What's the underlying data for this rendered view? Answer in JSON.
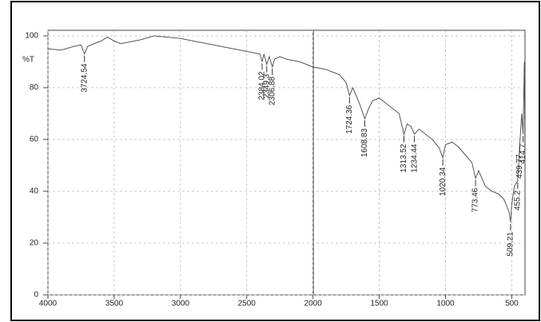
{
  "chart_data": {
    "type": "line",
    "ylabel": "%T",
    "x": [
      4000,
      3900,
      3800,
      3750,
      3724.54,
      3700,
      3650,
      3600,
      3550,
      3500,
      3450,
      3400,
      3300,
      3200,
      3100,
      3000,
      2900,
      2800,
      2700,
      2600,
      2500,
      2400,
      2384.02,
      2370,
      2349.3,
      2330,
      2306.88,
      2290,
      2250,
      2200,
      2100,
      2000,
      1900,
      1800,
      1750,
      1724.36,
      1700,
      1650,
      1608.83,
      1580,
      1550,
      1500,
      1450,
      1400,
      1350,
      1313.52,
      1290,
      1260,
      1234.44,
      1200,
      1150,
      1100,
      1050,
      1020.34,
      1000,
      950,
      900,
      850,
      800,
      773.46,
      750,
      700,
      650,
      600,
      560,
      520,
      509.21,
      500,
      480,
      455.2,
      439.77,
      425,
      414.7,
      405,
      400
    ],
    "values": [
      95,
      94.5,
      96,
      96.5,
      93,
      96,
      97,
      98,
      99.5,
      98,
      97,
      97.5,
      98.5,
      100,
      99.5,
      99,
      98,
      97,
      96,
      95,
      94,
      93,
      90,
      93,
      89,
      92,
      88,
      91,
      92,
      91,
      90,
      88,
      87,
      85,
      82,
      77,
      80,
      74,
      68,
      72,
      75,
      76,
      74,
      72,
      70,
      62,
      66,
      65,
      62,
      64,
      62,
      60,
      57,
      53,
      58,
      59,
      57,
      54,
      51,
      45,
      48,
      42,
      40,
      39,
      37,
      32,
      28,
      35,
      42,
      44,
      58,
      70,
      62,
      90,
      52
    ],
    "color": "#555555",
    "peaks": [
      3724.54,
      2384.02,
      2349.3,
      2306.88,
      1724.36,
      1608.83,
      1313.52,
      1234.44,
      1020.34,
      773.46,
      509.21,
      455.2,
      439.77,
      414.7
    ],
    "xlim": [
      4000,
      400
    ],
    "ylim": [
      0,
      100
    ],
    "xticks": [
      4000,
      3500,
      3000,
      2500,
      2000,
      1500,
      1000,
      500
    ],
    "yticks": [
      0,
      20,
      40,
      60,
      80,
      100
    ],
    "grid": true
  }
}
